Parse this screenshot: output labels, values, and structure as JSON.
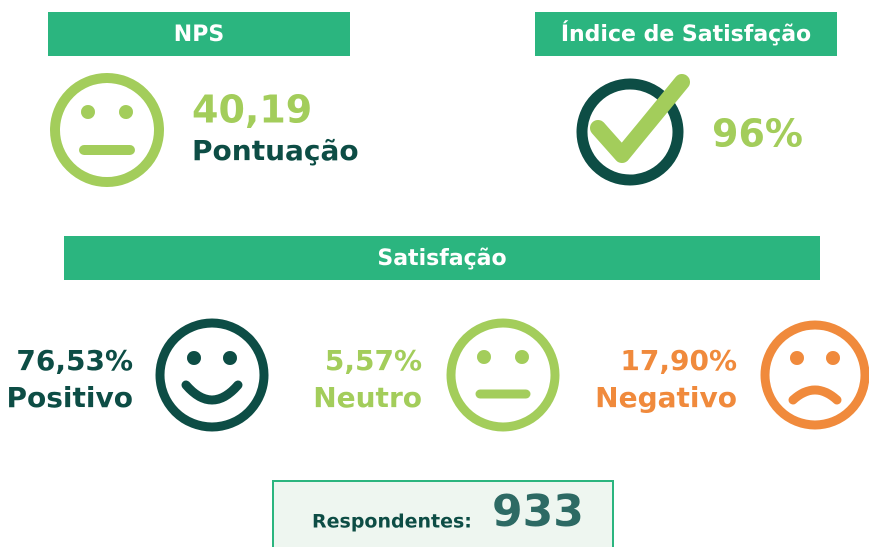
{
  "nps": {
    "header": "NPS",
    "score": "40,19",
    "label": "Pontuação"
  },
  "satisfaction_index": {
    "header": "Índice de Satisfação",
    "value": "96%"
  },
  "satisfaction": {
    "header": "Satisfação",
    "items": [
      {
        "value": "76,53%",
        "label": "Positivo"
      },
      {
        "value": "5,57%",
        "label": "Neutro"
      },
      {
        "value": "17,90%",
        "label": "Negativo"
      }
    ]
  },
  "respondents": {
    "label": "Respondentes:",
    "value": "933"
  }
}
